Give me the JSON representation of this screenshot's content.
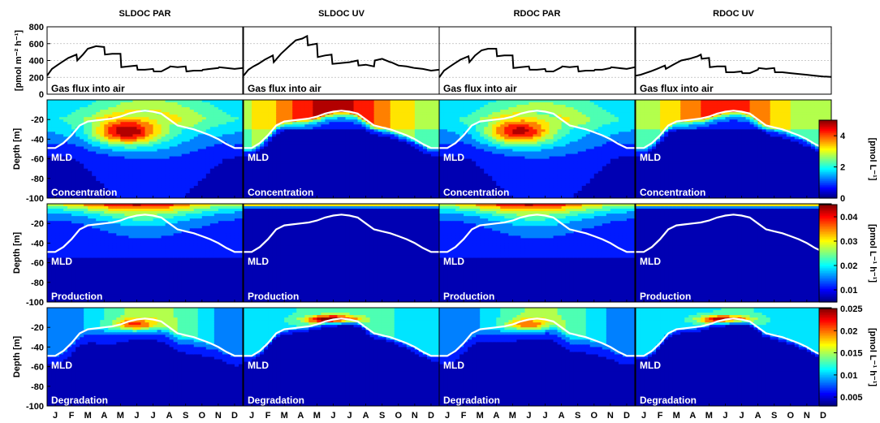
{
  "chart_data": {
    "type": "heatmap",
    "columns": [
      "SLDOC PAR",
      "SLDOC UV",
      "RDOC PAR",
      "RDOC UV"
    ],
    "months": [
      "J",
      "F",
      "M",
      "A",
      "M",
      "J",
      "J",
      "A",
      "S",
      "O",
      "N",
      "D"
    ],
    "flux_row": {
      "ylabel": "[pmol m⁻² h⁻¹]",
      "yticks": [
        "800",
        "600",
        "400",
        "200",
        "0"
      ],
      "ylim": [
        0,
        800
      ],
      "grid": true,
      "panel_label": "Gas flux into air",
      "series": [
        {
          "x": [
            0,
            0.3,
            0.6,
            0.9,
            1.3,
            1.8,
            1.85,
            2.2,
            2.5,
            3.0,
            3.5,
            3.55,
            4.0,
            4.5,
            4.55,
            5.0,
            5.5,
            5.55,
            6.0,
            6.5,
            6.55,
            7.0,
            7.5,
            7.55,
            8.0,
            8.5,
            8.55,
            9.0,
            9.5,
            9.55,
            10.0,
            10.5,
            10.55,
            11.0,
            11.5,
            11.99
          ],
          "y": [
            220,
            300,
            340,
            380,
            430,
            470,
            400,
            470,
            540,
            570,
            560,
            470,
            480,
            480,
            320,
            330,
            340,
            290,
            290,
            300,
            270,
            270,
            320,
            330,
            320,
            330,
            270,
            280,
            280,
            290,
            300,
            310,
            320,
            310,
            300,
            310
          ]
        },
        {
          "x": [
            0,
            0.3,
            0.6,
            0.9,
            1.3,
            1.8,
            1.85,
            2.3,
            2.8,
            3.2,
            3.6,
            3.9,
            3.95,
            4.5,
            4.55,
            5.0,
            5.4,
            5.45,
            6.0,
            6.5,
            7.0,
            7.05,
            7.5,
            8.0,
            8.05,
            8.5,
            9.0,
            9.05,
            9.5,
            10.0,
            10.5,
            11.0,
            11.5,
            11.99
          ],
          "y": [
            220,
            290,
            330,
            360,
            410,
            460,
            380,
            480,
            570,
            640,
            660,
            690,
            580,
            600,
            440,
            460,
            470,
            360,
            370,
            380,
            400,
            340,
            350,
            330,
            400,
            420,
            380,
            380,
            340,
            330,
            310,
            300,
            280,
            290
          ]
        },
        {
          "x": [
            0,
            0.3,
            0.6,
            0.9,
            1.3,
            1.8,
            1.85,
            2.2,
            2.6,
            3.0,
            3.5,
            3.55,
            4.0,
            4.5,
            4.55,
            5.0,
            5.5,
            5.55,
            6.0,
            6.5,
            6.55,
            7.0,
            7.5,
            7.55,
            8.0,
            8.5,
            8.55,
            9.0,
            9.5,
            9.55,
            10.0,
            10.5,
            10.55,
            11.0,
            11.5,
            11.99
          ],
          "y": [
            200,
            280,
            320,
            360,
            410,
            450,
            380,
            460,
            520,
            540,
            540,
            450,
            460,
            460,
            310,
            320,
            330,
            290,
            290,
            300,
            270,
            270,
            320,
            330,
            320,
            330,
            270,
            280,
            280,
            290,
            290,
            310,
            320,
            310,
            300,
            320
          ]
        },
        {
          "x": [
            0,
            0.3,
            0.6,
            0.9,
            1.3,
            1.8,
            1.85,
            2.3,
            2.8,
            3.3,
            3.8,
            4.0,
            4.05,
            4.5,
            4.55,
            5.0,
            5.5,
            5.55,
            6.0,
            6.5,
            6.55,
            7.0,
            7.5,
            7.55,
            8.0,
            8.5,
            8.55,
            9.0,
            9.5,
            10.0,
            10.5,
            11.0,
            11.5,
            11.99
          ],
          "y": [
            220,
            230,
            250,
            270,
            300,
            340,
            300,
            350,
            400,
            420,
            450,
            470,
            420,
            430,
            320,
            330,
            330,
            260,
            260,
            270,
            250,
            250,
            290,
            310,
            300,
            310,
            260,
            260,
            250,
            240,
            230,
            220,
            210,
            205
          ]
        }
      ]
    },
    "heatmap_rows": [
      {
        "name": "Concentration",
        "panel_label": "Concentration",
        "ylabel": "Depth [m]",
        "yticks": [
          "-20",
          "-40",
          "-60",
          "-80",
          "-100"
        ],
        "colorbar": {
          "label": "[pmol L⁻¹]",
          "ticks": [
            "4",
            "2",
            "0"
          ],
          "min": 0,
          "max": 5
        },
        "annotation": "MLD"
      },
      {
        "name": "Production",
        "panel_label": "Production",
        "ylabel": "Depth [m]",
        "yticks": [
          "-20",
          "-40",
          "-60",
          "-80",
          "-100"
        ],
        "colorbar": {
          "label": "[pmol L⁻¹ h⁻¹]",
          "ticks": [
            "0.04",
            "0.03",
            "0.02",
            "0.01"
          ],
          "min": 0.005,
          "max": 0.045
        },
        "annotation": "MLD"
      },
      {
        "name": "Degradation",
        "panel_label": "Degradation",
        "ylabel": "Depth [m]",
        "yticks": [
          "-20",
          "-40",
          "-60",
          "-80",
          "-100"
        ],
        "colorbar": {
          "label": "[pmol L⁻¹ h⁻¹]",
          "ticks": [
            "0.025",
            "0.02",
            "0.015",
            "0.01",
            "0.005"
          ],
          "min": 0.003,
          "max": 0.025
        },
        "annotation": "MLD"
      }
    ],
    "mld": {
      "x": [
        0,
        0.5,
        1.0,
        1.5,
        2.0,
        2.5,
        3.0,
        3.5,
        4.0,
        4.5,
        5.0,
        5.5,
        6.0,
        6.5,
        7.0,
        7.5,
        8.0,
        8.5,
        9.0,
        9.5,
        10.0,
        10.5,
        11.0,
        11.5,
        12
      ],
      "depth": [
        -49,
        -49,
        -44,
        -36,
        -26,
        -22,
        -21,
        -20,
        -19,
        -17,
        -14,
        -12,
        -11,
        -12,
        -14,
        -20,
        -26,
        -28,
        -30,
        -33,
        -36,
        -40,
        -45,
        -49,
        -49
      ]
    }
  }
}
